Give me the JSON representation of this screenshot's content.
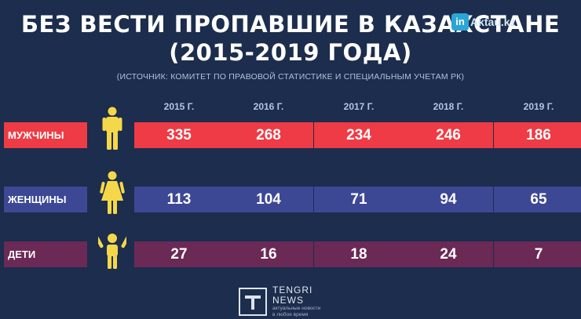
{
  "title_line1": "БЕЗ ВЕСТИ ПРОПАВШИЕ В КАЗАХСТАНЕ",
  "title_line2": "(2015-2019 ГОДА)",
  "source": "(ИСТОЧНИК: КОМИТЕТ ПО ПРАВОВОЙ СТАТИСТИКЕ И СПЕЦИАЛЬНЫМ УЧЕТАМ РК)",
  "watermark": {
    "badge": "in",
    "text": "Aktau.kz"
  },
  "logo": {
    "name_line1": "TENGRI",
    "name_line2": "NEWS",
    "tagline_line1": "актуальные новости",
    "tagline_line2": "в любое время"
  },
  "colors": {
    "background": "#1c2d4d",
    "men": "#ee3b45",
    "women": "#3d4895",
    "children": "#6b2956",
    "icon": "#f5d84a"
  },
  "icons": {
    "men": "man-icon",
    "women": "woman-icon",
    "children": "child-icon"
  },
  "chart_data": {
    "type": "table",
    "title": "БЕЗ ВЕСТИ ПРОПАВШИЕ В КАЗАХСТАНЕ (2015-2019 ГОДА)",
    "categories": [
      "2015 Г.",
      "2016 Г.",
      "2017 Г.",
      "2018 Г.",
      "2019 Г."
    ],
    "series": [
      {
        "name": "МУЖЧИНЫ",
        "values": [
          335,
          268,
          234,
          246,
          186
        ]
      },
      {
        "name": "ЖЕНЩИНЫ",
        "values": [
          113,
          104,
          71,
          94,
          65
        ]
      },
      {
        "name": "ДЕТИ",
        "values": [
          27,
          16,
          18,
          24,
          7
        ]
      }
    ]
  }
}
